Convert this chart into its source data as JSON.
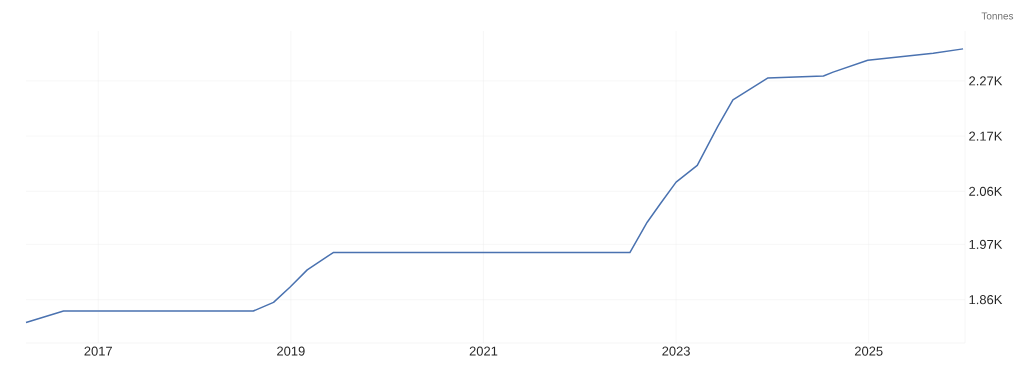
{
  "chart_data": {
    "type": "line",
    "ylabel": "Tonnes",
    "x": [
      2016.25,
      2016.64,
      2018.61,
      2018.82,
      2018.99,
      2019.17,
      2019.44,
      2022.52,
      2022.7,
      2022.84,
      2023.0,
      2023.22,
      2023.43,
      2023.59,
      2023.95,
      2024.53,
      2024.63,
      2024.99,
      2025.67,
      2025.98
    ],
    "series": [
      {
        "color": "#4a72b0",
        "values": [
          1822,
          1843,
          1843,
          1859,
          1887,
          1919,
          1951,
          1951,
          2007,
          2042,
          2081,
          2112,
          2183,
          2233,
          2273,
          2277,
          2284,
          2306,
          2319,
          2327
        ]
      }
    ],
    "xlim": [
      2016.25,
      2026.0
    ],
    "xticks": [
      2017,
      2019,
      2021,
      2023,
      2025
    ],
    "ylim": [
      1784,
      2360
    ],
    "yticks": [
      {
        "value": 1864,
        "label": "1.86K"
      },
      {
        "value": 1966,
        "label": "1.97K"
      },
      {
        "value": 2064,
        "label": "2.06K"
      },
      {
        "value": 2166,
        "label": "2.17K"
      },
      {
        "value": 2268,
        "label": "2.27K"
      }
    ],
    "grid": true,
    "marker": "none",
    "line_style": "solid"
  }
}
